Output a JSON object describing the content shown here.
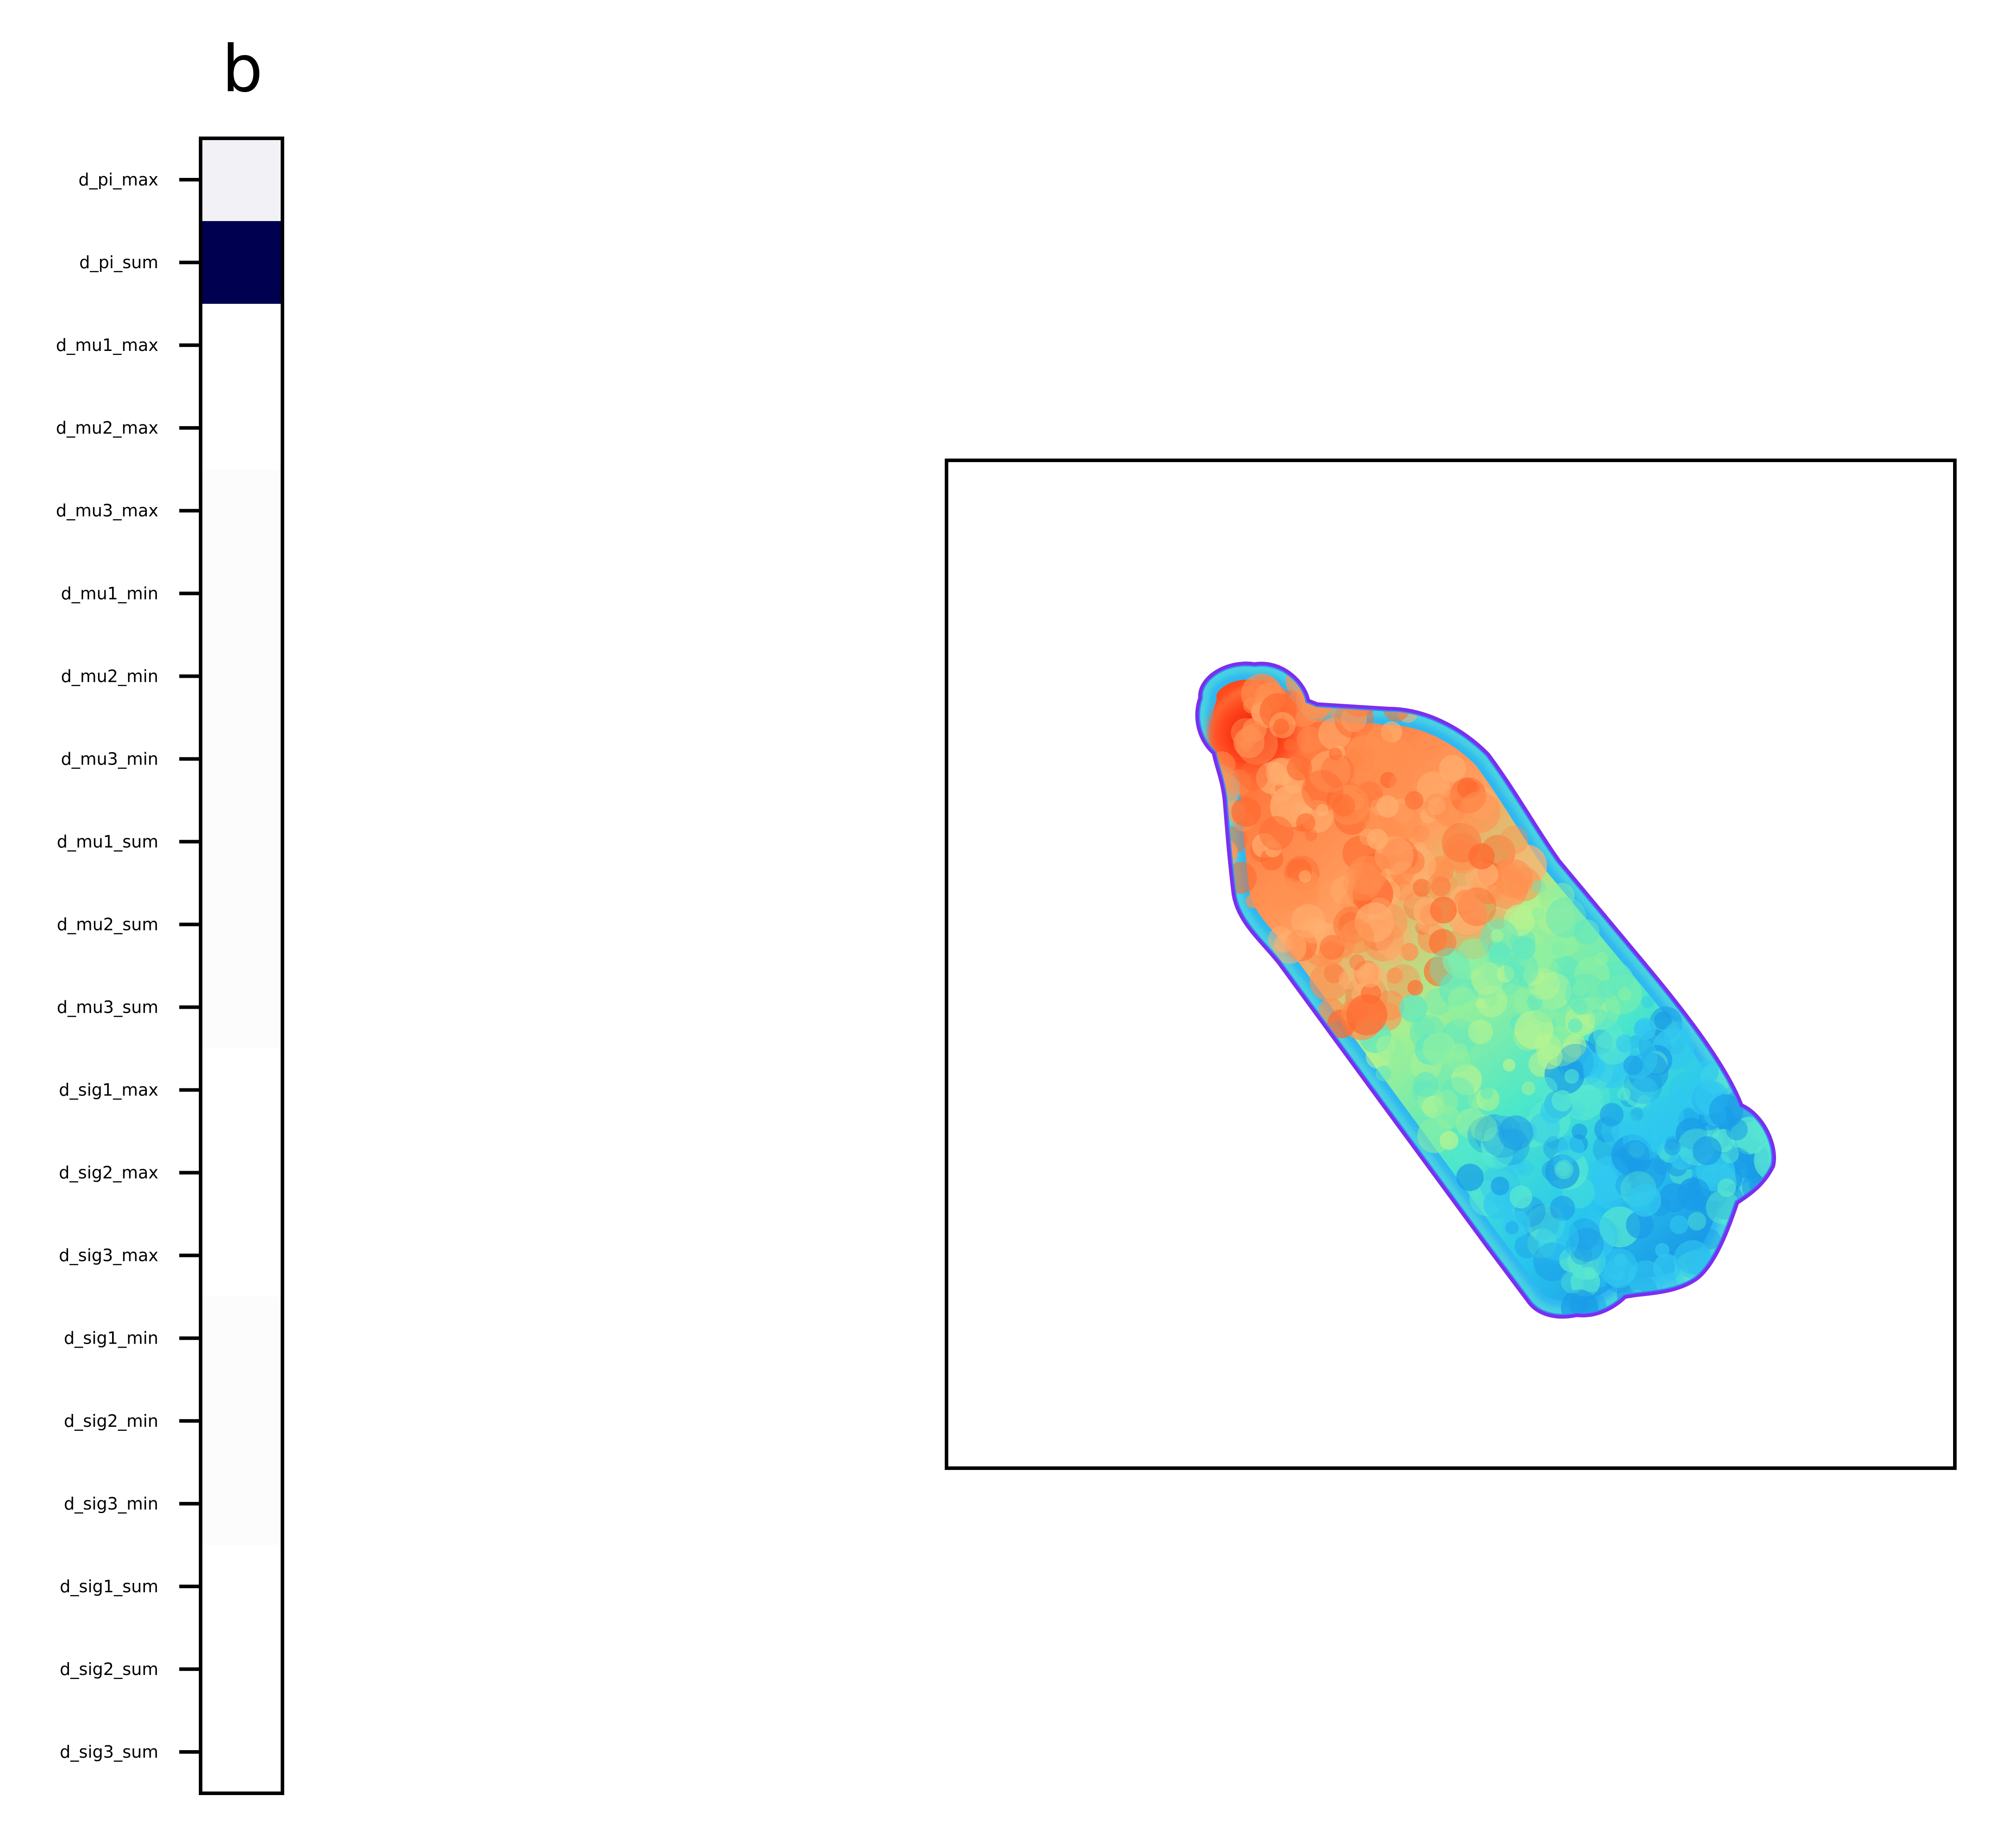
{
  "chart_data": [
    {
      "type": "heatmap",
      "panel_label": "b",
      "colormap": "white-to-navy (seismic lower half)",
      "color_low": "#ffffff",
      "color_high": "#000050",
      "xticks": [],
      "rows": [
        {
          "label": "d_pi_max",
          "value": 0.05
        },
        {
          "label": "d_pi_sum",
          "value": 1.0
        },
        {
          "label": "d_mu1_max",
          "value": 0.0
        },
        {
          "label": "d_mu2_max",
          "value": 0.0
        },
        {
          "label": "d_mu3_max",
          "value": 0.01
        },
        {
          "label": "d_mu1_min",
          "value": 0.01
        },
        {
          "label": "d_mu2_min",
          "value": 0.01
        },
        {
          "label": "d_mu3_min",
          "value": 0.01
        },
        {
          "label": "d_mu1_sum",
          "value": 0.01
        },
        {
          "label": "d_mu2_sum",
          "value": 0.01
        },
        {
          "label": "d_mu3_sum",
          "value": 0.01
        },
        {
          "label": "d_sig1_max",
          "value": 0.0
        },
        {
          "label": "d_sig2_max",
          "value": 0.0
        },
        {
          "label": "d_sig3_max",
          "value": 0.0
        },
        {
          "label": "d_sig1_min",
          "value": 0.01
        },
        {
          "label": "d_sig2_min",
          "value": 0.01
        },
        {
          "label": "d_sig3_min",
          "value": 0.01
        },
        {
          "label": "d_sig1_sum",
          "value": 0.0
        },
        {
          "label": "d_sig2_sum",
          "value": 0.0
        },
        {
          "label": "d_sig3_sum",
          "value": 0.0
        }
      ]
    },
    {
      "type": "image",
      "colormap": "rainbow",
      "description_of_shape": "bottle-shaped object, rotated about 45 degrees, small red cap at upper-left end, orange upper body grading to cyan/blue lower body, violet edges",
      "xticks": [],
      "yticks": []
    }
  ],
  "colors": {
    "axes": "#000000",
    "red": "#ff1a00",
    "orange": "#ff8a50",
    "green": "#80f5a0",
    "cyan": "#20d2f0",
    "blue": "#1890e6",
    "violet": "#7030f0"
  }
}
